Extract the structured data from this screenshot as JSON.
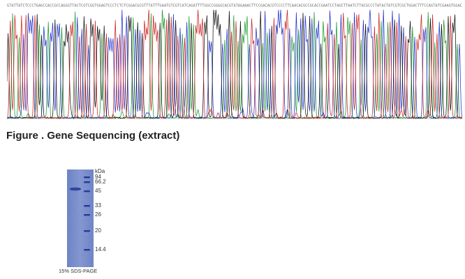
{
  "figure": {
    "caption": "Figure . Gene Sequencing (extract)"
  },
  "chromatogram": {
    "trace_colors": {
      "A": "#1a9a2a",
      "C": "#2233cc",
      "G": "#111111",
      "T": "#cc2222"
    },
    "sequence_text_color": "#6a6a6a"
  },
  "gel": {
    "unit_label": "kDa",
    "markers": [
      "94",
      "66.2",
      "45",
      "33",
      "26",
      "20",
      "14.4"
    ],
    "caption": "15% SDS-PAGE",
    "gel_color": "#7b8fcb",
    "band_color": "#25399a"
  }
}
